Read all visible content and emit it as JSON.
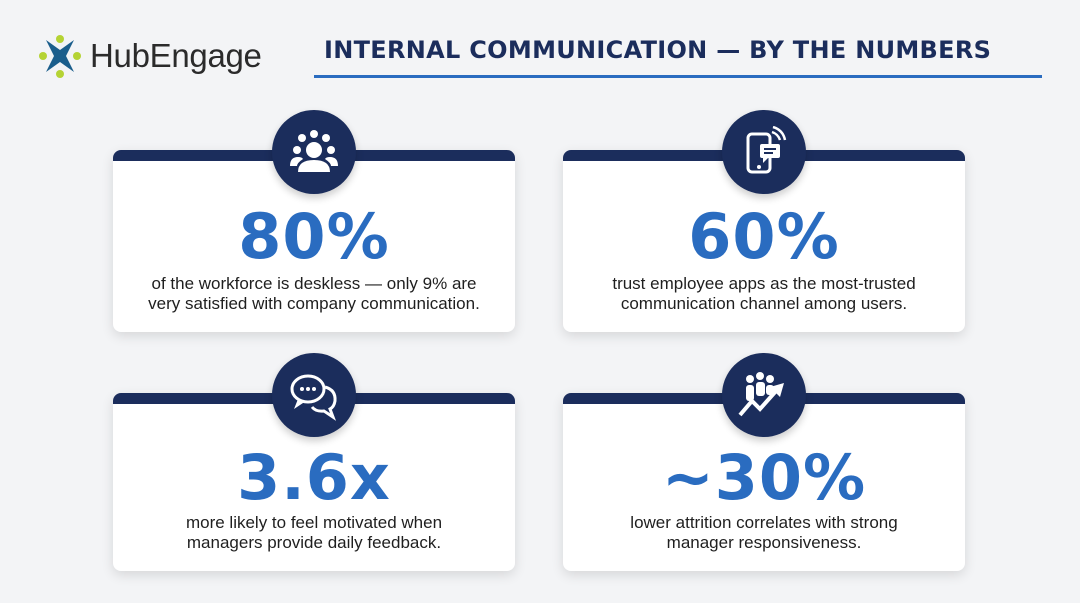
{
  "brand": {
    "name": "HubEngage",
    "logo_colors": {
      "mark": "#1b5e8c",
      "dots": "#b5d334"
    }
  },
  "header": {
    "title": "INTERNAL COMMUNICATION — BY THE NUMBERS"
  },
  "colors": {
    "navy": "#1b2d5c",
    "accent_blue": "#2a6cc0",
    "background": "#f3f4f6"
  },
  "stats": [
    {
      "icon": "people-group-icon",
      "value": "80%",
      "line1": "of the workforce is deskless — only 9% are",
      "line2": "very satisfied with company communication."
    },
    {
      "icon": "mobile-chat-icon",
      "value": "60%",
      "line1": "trust employee apps as the most-trusted",
      "line2": "communication channel among users."
    },
    {
      "icon": "speech-bubbles-icon",
      "value": "3.6x",
      "line1": "more likely to feel motivated when",
      "line2": "managers provide daily feedback."
    },
    {
      "icon": "team-growth-icon",
      "value": "~30%",
      "line1": "lower attrition correlates with strong",
      "line2": "manager responsiveness."
    }
  ]
}
